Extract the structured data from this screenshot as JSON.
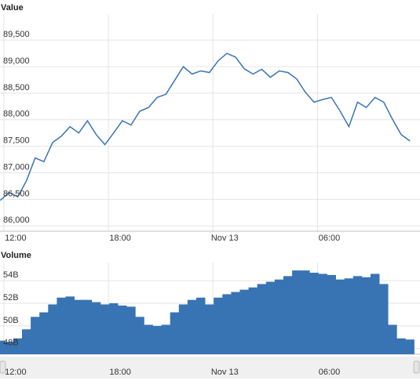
{
  "chart_data": [
    {
      "type": "line",
      "title": "Value",
      "color": "#3874b4",
      "grid": true,
      "x": [
        11.8,
        12.3,
        12.8,
        13.3,
        13.8,
        14.3,
        14.8,
        15.3,
        15.8,
        16.3,
        16.8,
        17.3,
        17.8,
        18.3,
        18.8,
        19.3,
        19.8,
        20.3,
        20.8,
        21.3,
        21.8,
        22.3,
        22.8,
        23.3,
        23.8,
        24.3,
        24.8,
        25.3,
        25.8,
        26.3,
        26.8,
        27.3,
        27.8,
        28.3,
        28.8,
        29.3,
        29.8,
        30.3,
        30.8,
        31.3,
        31.8,
        32.3,
        32.8,
        33.3,
        33.8,
        34.3,
        34.8,
        35.3
      ],
      "values": [
        86480,
        86630,
        86550,
        86850,
        87280,
        87210,
        87570,
        87690,
        87870,
        87750,
        87980,
        87720,
        87530,
        87750,
        87980,
        87900,
        88160,
        88230,
        88420,
        88480,
        88740,
        89000,
        88860,
        88920,
        88890,
        89110,
        89250,
        89180,
        88960,
        88860,
        88950,
        88800,
        88920,
        88890,
        88770,
        88520,
        88330,
        88380,
        88420,
        88160,
        87870,
        88330,
        88230,
        88420,
        88330,
        88010,
        87720,
        87600
      ],
      "xlim": [
        11.78,
        35.88
      ],
      "xticks": [
        {
          "value": 12,
          "label": "12:00"
        },
        {
          "value": 18,
          "label": "18:00"
        },
        {
          "value": 24,
          "label": "Nov 13"
        },
        {
          "value": 30,
          "label": "06:00"
        }
      ],
      "ylim": [
        85900,
        89990
      ],
      "yticks": [
        {
          "value": 86000,
          "label": "86,000"
        },
        {
          "value": 86500,
          "label": "86,500"
        },
        {
          "value": 87000,
          "label": "87,000"
        },
        {
          "value": 87500,
          "label": "87,500"
        },
        {
          "value": 88000,
          "label": "88,000"
        },
        {
          "value": 88500,
          "label": "88,500"
        },
        {
          "value": 89000,
          "label": "89,000"
        },
        {
          "value": 89500,
          "label": "89,500"
        }
      ]
    },
    {
      "type": "bar",
      "title": "Volume",
      "color": "#3874b4",
      "grid": true,
      "x": [
        11.8,
        12.3,
        12.8,
        13.3,
        13.8,
        14.3,
        14.8,
        15.3,
        15.8,
        16.3,
        16.8,
        17.3,
        17.8,
        18.3,
        18.8,
        19.3,
        19.8,
        20.3,
        20.8,
        21.3,
        21.8,
        22.3,
        22.8,
        23.3,
        23.8,
        24.3,
        24.8,
        25.3,
        25.8,
        26.3,
        26.8,
        27.3,
        27.8,
        28.3,
        28.8,
        29.3,
        29.8,
        30.3,
        30.8,
        31.3,
        31.8,
        32.3,
        32.8,
        33.3,
        33.8,
        34.3,
        34.8,
        35.3
      ],
      "values": [
        48700000000.0,
        48600000000.0,
        48900000000.0,
        49700000000.0,
        50800000000.0,
        51200000000.0,
        51900000000.0,
        52500000000.0,
        52600000000.0,
        52300000000.0,
        52300000000.0,
        52100000000.0,
        51900000000.0,
        52000000000.0,
        51800000000.0,
        51700000000.0,
        50800000000.0,
        50100000000.0,
        50000000000.0,
        50100000000.0,
        51200000000.0,
        51900000000.0,
        52300000000.0,
        52500000000.0,
        51900000000.0,
        52500000000.0,
        52800000000.0,
        53000000000.0,
        53200000000.0,
        53400000000.0,
        53700000000.0,
        53900000000.0,
        54100000000.0,
        54400000000.0,
        54900000000.0,
        54900000000.0,
        54700000000.0,
        54600000000.0,
        54500000000.0,
        54100000000.0,
        54200000000.0,
        54400000000.0,
        54300000000.0,
        54600000000.0,
        53700000000.0,
        50100000000.0,
        48900000000.0,
        48800000000.0
      ],
      "xlim": [
        11.78,
        35.88
      ],
      "xticks": [
        {
          "value": 12,
          "label": "12:00"
        },
        {
          "value": 18,
          "label": "18:00"
        },
        {
          "value": 24,
          "label": "Nov 13"
        },
        {
          "value": 30,
          "label": "06:00"
        }
      ],
      "ylim": [
        47500000000.0,
        55600000000.0
      ],
      "yticks": [
        {
          "value": 48000000000.0,
          "label": "48B"
        },
        {
          "value": 50000000000.0,
          "label": "50B"
        },
        {
          "value": 52000000000.0,
          "label": "52B"
        },
        {
          "value": 54000000000.0,
          "label": "54B"
        }
      ]
    }
  ]
}
